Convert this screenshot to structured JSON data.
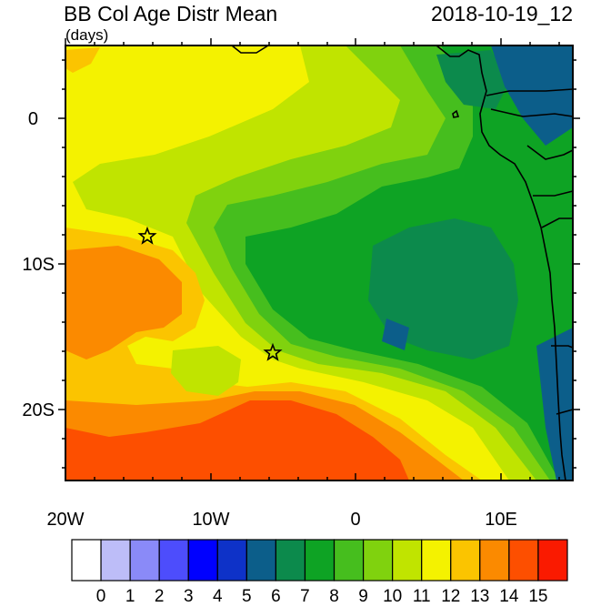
{
  "header": {
    "title": "BB Col Age Distr Mean",
    "units": "(days)",
    "timestamp": "2018-10-19_12"
  },
  "map": {
    "lon_range": [
      -20,
      15
    ],
    "lat_range": [
      -25,
      5
    ],
    "x_ticks": [
      {
        "lon": -20,
        "label": "20W"
      },
      {
        "lon": -10,
        "label": "10W"
      },
      {
        "lon": 0,
        "label": "0"
      },
      {
        "lon": 10,
        "label": "10E"
      }
    ],
    "y_ticks": [
      {
        "lat": 0,
        "label": "0"
      },
      {
        "lat": -10,
        "label": "10S"
      },
      {
        "lat": -20,
        "label": "20S"
      }
    ],
    "markers": [
      {
        "name": "star-marker-north",
        "lon": -14.3,
        "lat": -8.0
      },
      {
        "name": "star-marker-south",
        "lon": -5.8,
        "lat": -16.0
      }
    ]
  },
  "colorbar": {
    "labels": [
      "0",
      "1",
      "2",
      "3",
      "4",
      "5",
      "6",
      "7",
      "8",
      "9",
      "10",
      "11",
      "12",
      "13",
      "14",
      "15"
    ],
    "colors": [
      "#ffffff",
      "#bdbdf8",
      "#8a8af8",
      "#4d4dfc",
      "#0000ff",
      "#0e32c8",
      "#0c5e8a",
      "#0c8a4c",
      "#0ea324",
      "#46be1e",
      "#80d20e",
      "#c0e400",
      "#f4f200",
      "#fbc400",
      "#fb8a00",
      "#fd4f00",
      "#fa1a00"
    ]
  }
}
